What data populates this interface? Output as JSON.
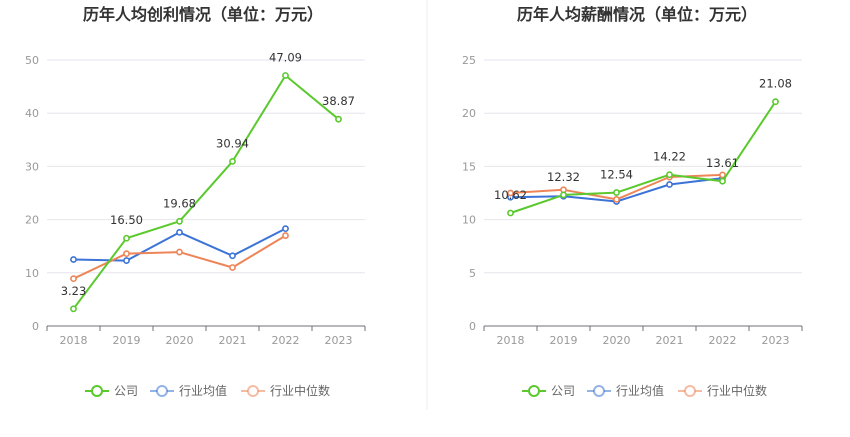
{
  "chart_data": [
    {
      "type": "line",
      "title": "历年人均创利情况（单位：万元）",
      "categories": [
        "2018",
        "2019",
        "2020",
        "2021",
        "2022",
        "2023"
      ],
      "ylim": [
        0,
        50
      ],
      "yticks": [
        0,
        10,
        20,
        30,
        40,
        50
      ],
      "grid": true,
      "legend_position": "bottom",
      "series": [
        {
          "name": "公司",
          "color": "#5ac92d",
          "values": [
            3.23,
            16.5,
            19.68,
            30.94,
            47.09,
            38.87
          ],
          "labels": [
            "3.23",
            "16.50",
            "19.68",
            "30.94",
            "47.09",
            "38.87"
          ]
        },
        {
          "name": "行业均值",
          "color": "#3b73d6",
          "values": [
            12.5,
            12.3,
            17.6,
            13.2,
            18.3,
            null
          ]
        },
        {
          "name": "行业中位数",
          "color": "#ee8558",
          "values": [
            8.9,
            13.6,
            13.9,
            11.0,
            17.0,
            null
          ]
        }
      ]
    },
    {
      "type": "line",
      "title": "历年人均薪酬情况（单位：万元）",
      "categories": [
        "2018",
        "2019",
        "2020",
        "2021",
        "2022",
        "2023"
      ],
      "ylim": [
        0,
        25
      ],
      "yticks": [
        0,
        5,
        10,
        15,
        20,
        25
      ],
      "grid": true,
      "legend_position": "bottom",
      "series": [
        {
          "name": "公司",
          "color": "#5ac92d",
          "values": [
            10.62,
            12.32,
            12.54,
            14.22,
            13.61,
            21.08
          ],
          "labels": [
            "10.62",
            "12.32",
            "12.54",
            "14.22",
            "13.61",
            "21.08"
          ]
        },
        {
          "name": "行业均值",
          "color": "#3b73d6",
          "values": [
            12.1,
            12.2,
            11.7,
            13.3,
            13.9,
            null
          ]
        },
        {
          "name": "行业中位数",
          "color": "#ee8558",
          "values": [
            12.5,
            12.8,
            11.9,
            14.0,
            14.2,
            null
          ]
        }
      ]
    }
  ]
}
